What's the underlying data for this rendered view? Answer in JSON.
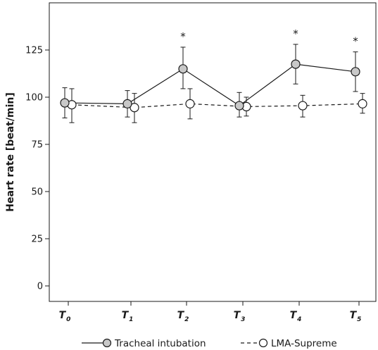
{
  "chart_data": {
    "type": "line",
    "ylabel": "Heart rate [beat/min]",
    "xlabel": "",
    "ylim": [
      -10,
      155
    ],
    "yticks": [
      0,
      25,
      50,
      75,
      100,
      125
    ],
    "categories": [
      {
        "base": "T",
        "sub": "0"
      },
      {
        "base": "T",
        "sub": "1"
      },
      {
        "base": "T",
        "sub": "2"
      },
      {
        "base": "T",
        "sub": "3"
      },
      {
        "base": "T",
        "sub": "4"
      },
      {
        "base": "T",
        "sub": "5"
      }
    ],
    "significance_marker": "*",
    "grid": false,
    "legend_position": "bottom",
    "series": [
      {
        "name": "Tracheal intubation",
        "line_style": "solid",
        "marker_fill": "#c8c8c8",
        "values": [
          97,
          96.5,
          115,
          95.5,
          117.5,
          113.5
        ],
        "err_low": [
          89,
          89.5,
          104.5,
          89.5,
          107,
          103
        ],
        "err_high": [
          105,
          103.5,
          126.5,
          102.5,
          128,
          124
        ],
        "significant": [
          false,
          false,
          true,
          false,
          true,
          true
        ]
      },
      {
        "name": "LMA-Supreme",
        "line_style": "dashed",
        "marker_fill": "#ffffff",
        "values": [
          96,
          94.5,
          96.5,
          95,
          95.5,
          96.5
        ],
        "err_low": [
          86.5,
          86.5,
          88.5,
          90,
          89.5,
          91.5
        ],
        "err_high": [
          104.5,
          102,
          104.5,
          100,
          101,
          102
        ],
        "significant": [
          false,
          false,
          false,
          false,
          false,
          false
        ]
      }
    ]
  }
}
